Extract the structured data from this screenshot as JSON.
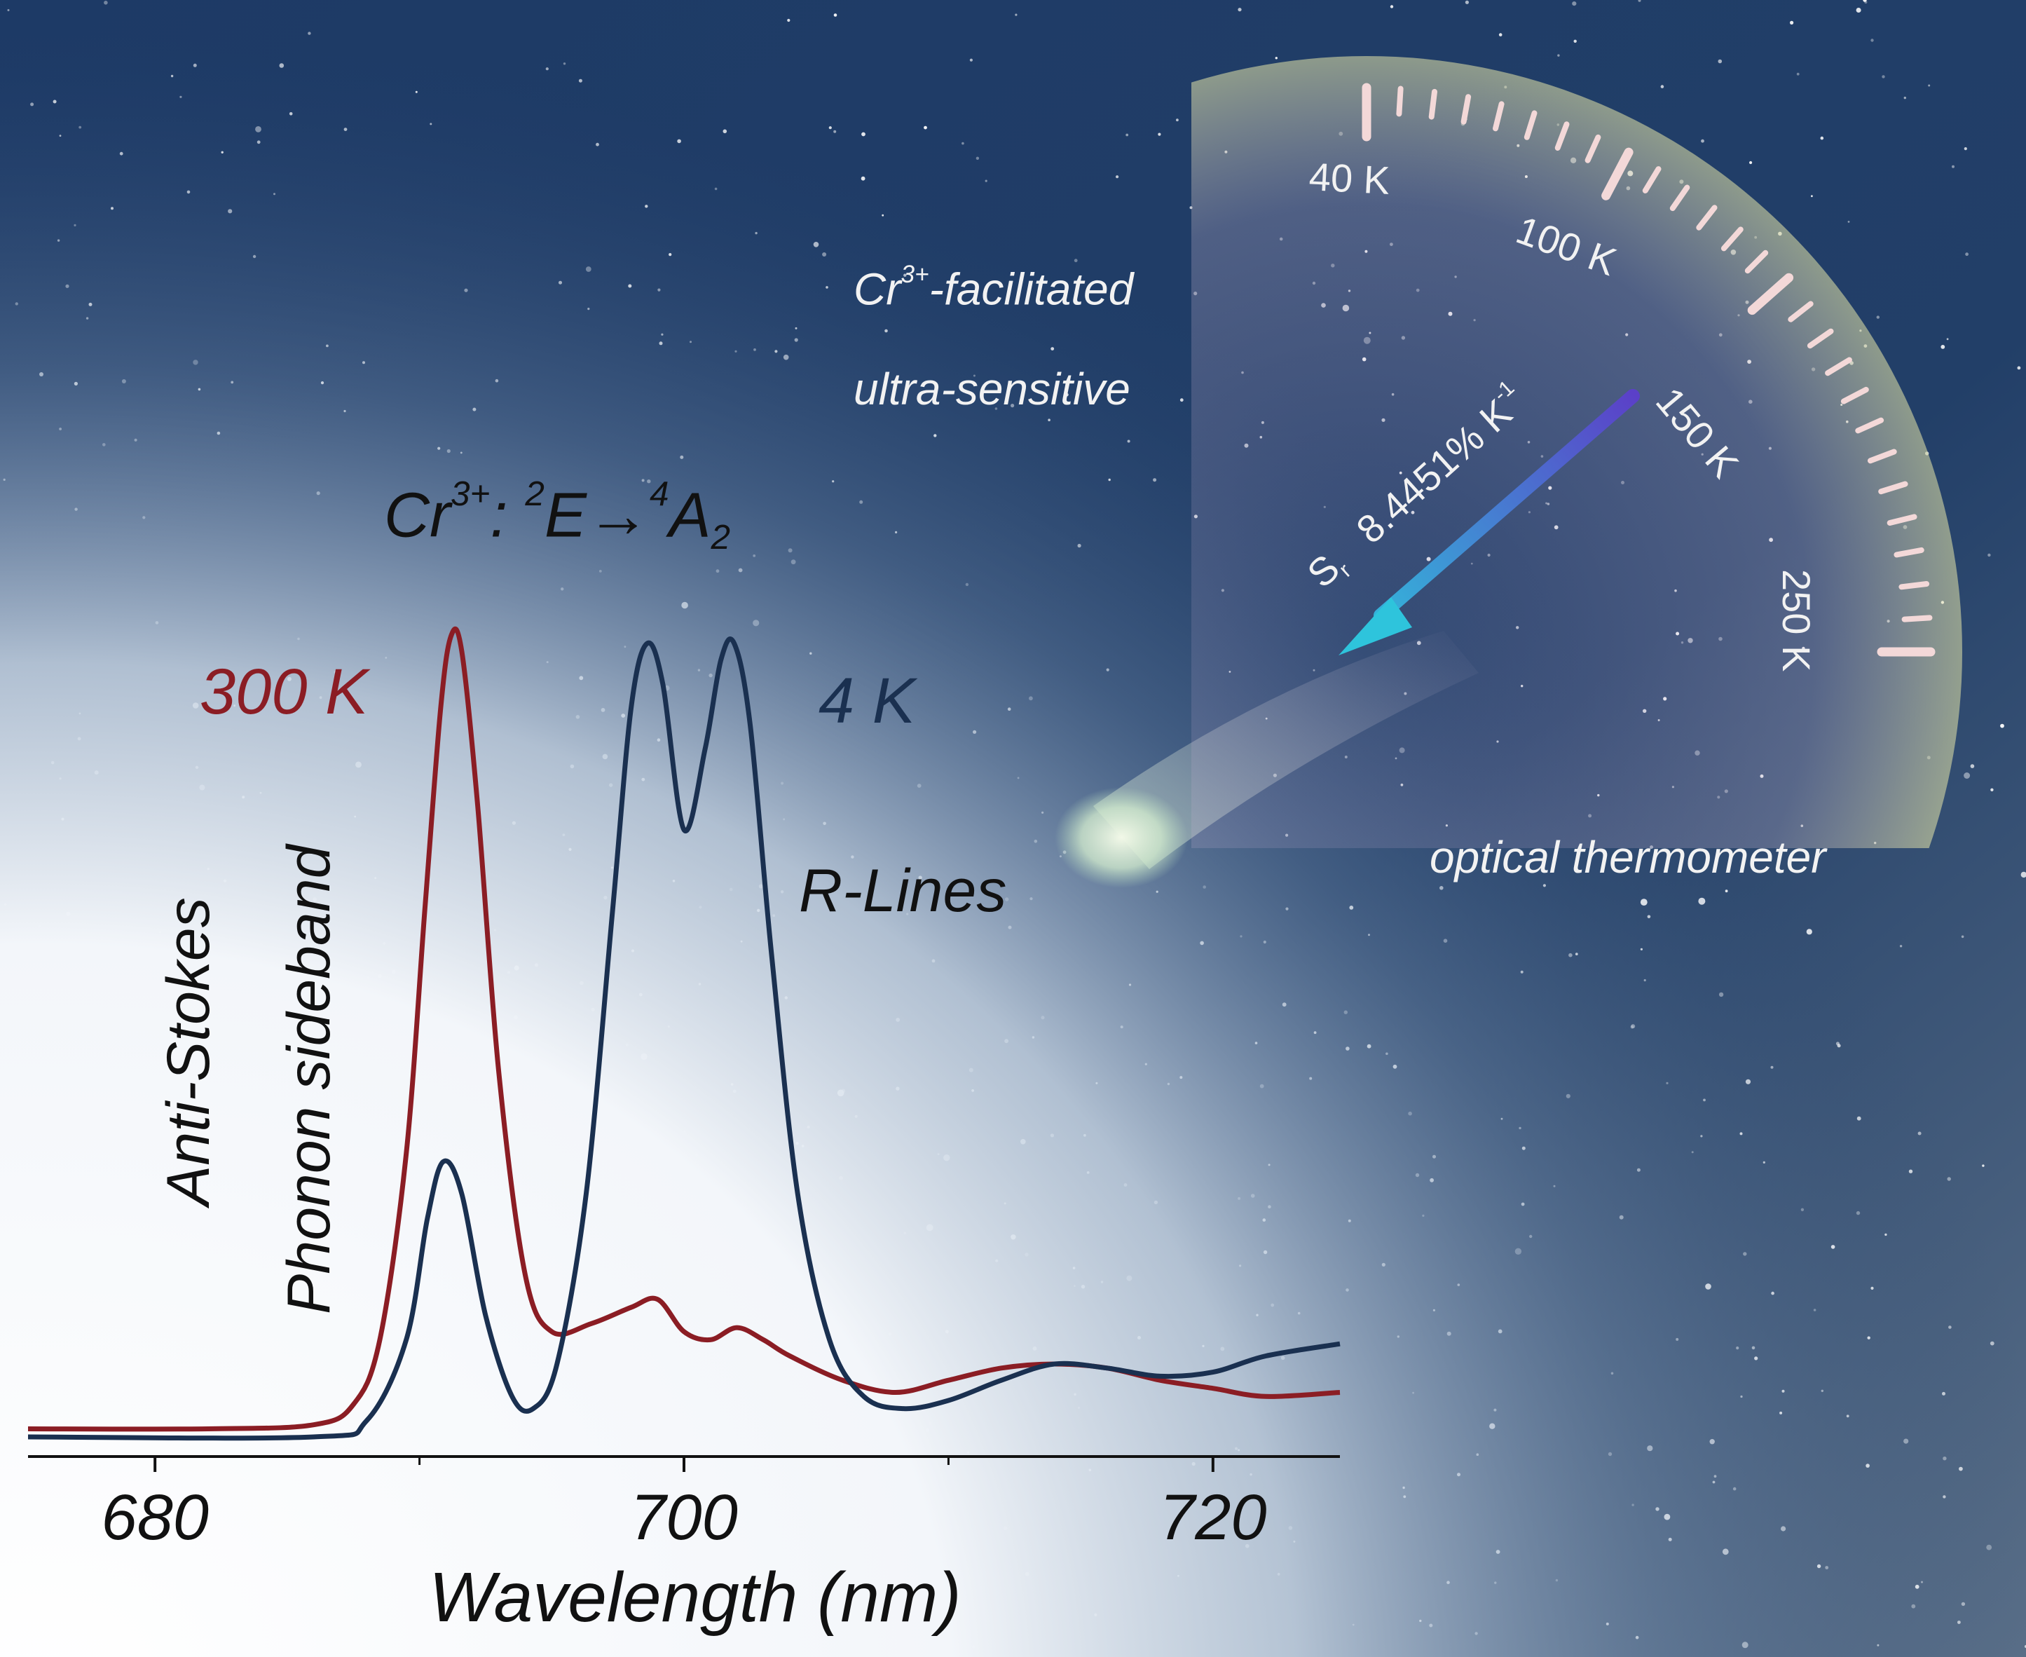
{
  "colors": {
    "series_300K": "#8b1d24",
    "series_4K": "#1a3050",
    "axis": "#111111",
    "sky": "#1d3a66",
    "glow": "#e8eef5",
    "gauge": "#d8dca0",
    "tick": "#f3d8d8",
    "arrow_start": "#5b40c8",
    "arrow_end": "#2ec4dc"
  },
  "annotations": {
    "transition_prefix": "Cr",
    "transition_ion_charge": "3+",
    "transition_colon": ": ",
    "transition_initial_mult": "2",
    "transition_initial": "E→",
    "transition_final_mult": "4",
    "transition_final": "A",
    "transition_final_sub": "2",
    "label_300K": "300 K",
    "label_4K": "4 K",
    "anti_stokes": "Anti-Stokes",
    "phonon_sideband": "Phonon sideband",
    "r_lines": "R-Lines"
  },
  "cover": {
    "line1_prefix": "Cr",
    "line1_charge": "3+",
    "line1_suffix": "-facilitated",
    "line2": "ultra-sensitive",
    "line3": "optical thermometer",
    "sensitivity_symbol": "S",
    "sensitivity_sub": "r",
    "sensitivity_value": "8.4451% K",
    "sensitivity_exp": "-1"
  },
  "gauge": {
    "labels": [
      "40 K",
      "100 K",
      "150 K",
      "250 K"
    ],
    "needle_icon": "arrow-icon"
  },
  "chart_data": {
    "type": "line",
    "title": "",
    "xlabel": "Wavelength (nm)",
    "ylabel": "",
    "xlim": [
      675.2,
      724.8
    ],
    "ylim": [
      0,
      1.0
    ],
    "xticks": [
      680,
      700,
      720
    ],
    "xtick_labels": [
      "680",
      "700",
      "720"
    ],
    "minor_xticks": [
      690,
      710
    ],
    "series": [
      {
        "name": "300 K",
        "x": [
          675.2,
          682,
          686,
          687.5,
          688.5,
          689.5,
          690.2,
          690.8,
          691.2,
          691.6,
          692.2,
          693,
          694,
          695,
          696.5,
          698,
          699,
          700,
          701,
          702,
          703,
          704,
          706,
          708,
          710,
          712,
          714,
          716,
          718,
          720,
          722,
          724.8
        ],
        "y": [
          0.01,
          0.01,
          0.015,
          0.04,
          0.12,
          0.35,
          0.65,
          0.9,
          0.99,
          0.97,
          0.78,
          0.45,
          0.2,
          0.13,
          0.14,
          0.16,
          0.17,
          0.13,
          0.12,
          0.135,
          0.12,
          0.1,
          0.07,
          0.055,
          0.07,
          0.085,
          0.09,
          0.085,
          0.07,
          0.06,
          0.05,
          0.055
        ]
      },
      {
        "name": "4 K",
        "x": [
          675.2,
          686,
          688,
          689.5,
          690.3,
          690.9,
          691.6,
          692.5,
          693.5,
          694.3,
          695.2,
          696.3,
          697.3,
          698,
          698.6,
          699.2,
          700,
          700.8,
          701.4,
          701.9,
          702.5,
          703.3,
          704.3,
          705.5,
          706.8,
          708.3,
          710,
          712,
          714,
          716,
          718,
          720,
          722,
          724.8
        ],
        "y": [
          0.0,
          0.0,
          0.02,
          0.12,
          0.27,
          0.34,
          0.3,
          0.15,
          0.05,
          0.035,
          0.09,
          0.3,
          0.65,
          0.9,
          0.98,
          0.93,
          0.75,
          0.85,
          0.96,
          0.98,
          0.88,
          0.6,
          0.3,
          0.12,
          0.05,
          0.035,
          0.045,
          0.07,
          0.09,
          0.085,
          0.075,
          0.08,
          0.1,
          0.115
        ]
      }
    ]
  }
}
